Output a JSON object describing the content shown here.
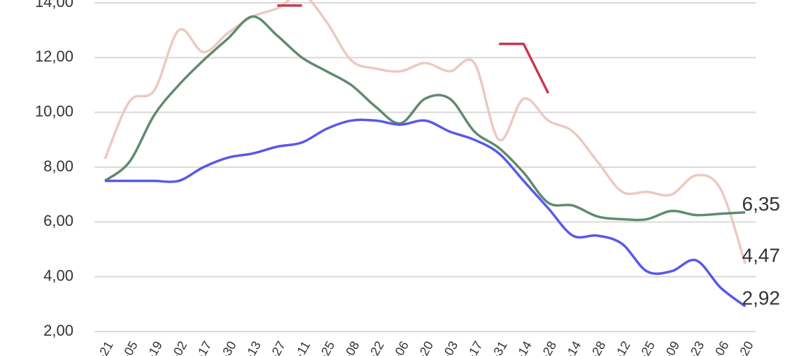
{
  "chart_data": {
    "type": "line",
    "categories": [
      "-21",
      "-05",
      "-19",
      "-02",
      "-17",
      "-30",
      "-13",
      "-27",
      "-11",
      "-25",
      "-08",
      "-22",
      "-06",
      "-20",
      "-03",
      "-17",
      "-31",
      "-14",
      "-28",
      "-14",
      "-28",
      "-12",
      "-25",
      "-09",
      "-23",
      "-06",
      "-20"
    ],
    "series": [
      {
        "color": "#ecc9c1",
        "values": [
          8.3,
          10.4,
          10.8,
          13.0,
          12.2,
          12.9,
          13.5,
          13.8,
          14.3,
          13.3,
          11.9,
          11.6,
          11.5,
          11.8,
          11.5,
          11.8,
          9.0,
          10.5,
          9.7,
          9.3,
          8.2,
          7.1,
          7.1,
          7.0,
          7.7,
          7.2,
          4.47
        ],
        "value_labels": [
          null,
          null,
          null,
          null,
          null,
          null,
          null,
          null,
          null,
          null,
          null,
          null,
          null,
          null,
          null,
          null,
          null,
          null,
          null,
          null,
          null,
          null,
          null,
          null,
          null,
          null,
          "4,47"
        ]
      },
      {
        "color": "#5f8b6f",
        "values": [
          7.5,
          8.2,
          9.9,
          11.0,
          11.9,
          12.7,
          13.5,
          12.8,
          12.0,
          11.5,
          11.0,
          10.2,
          9.6,
          10.5,
          10.5,
          9.3,
          8.7,
          7.8,
          6.7,
          6.6,
          6.2,
          6.1,
          6.1,
          6.4,
          6.25,
          6.3,
          6.35
        ],
        "value_labels": [
          null,
          null,
          null,
          null,
          null,
          null,
          null,
          null,
          null,
          null,
          null,
          null,
          null,
          null,
          null,
          null,
          null,
          null,
          null,
          null,
          null,
          null,
          null,
          null,
          null,
          null,
          "6,35"
        ]
      },
      {
        "color": "#5858ec",
        "values": [
          7.5,
          7.5,
          7.5,
          7.5,
          8.0,
          8.35,
          8.5,
          8.75,
          8.9,
          9.4,
          9.7,
          9.7,
          9.55,
          9.7,
          9.3,
          9.0,
          8.5,
          7.5,
          6.5,
          5.5,
          5.5,
          5.2,
          4.2,
          4.2,
          4.6,
          3.6,
          2.92
        ],
        "value_labels": [
          null,
          null,
          null,
          null,
          null,
          null,
          null,
          null,
          null,
          null,
          null,
          null,
          null,
          null,
          null,
          null,
          null,
          null,
          null,
          null,
          null,
          null,
          null,
          null,
          null,
          null,
          "2,92"
        ]
      },
      {
        "color": "#c8384e",
        "values": [
          null,
          null,
          null,
          null,
          null,
          null,
          null,
          13.9,
          13.9,
          null,
          null,
          null,
          null,
          null,
          null,
          null,
          12.5,
          12.5,
          10.7,
          null,
          null,
          null,
          null,
          null,
          null,
          null,
          null
        ]
      }
    ],
    "ylim": [
      2,
      14
    ],
    "yticks": [
      {
        "value": 2,
        "label": "2,00"
      },
      {
        "value": 4,
        "label": "4,00"
      },
      {
        "value": 6,
        "label": "6,00"
      },
      {
        "value": 8,
        "label": "8,00"
      },
      {
        "value": 10,
        "label": "10,00"
      },
      {
        "value": 12,
        "label": "12,00"
      },
      {
        "value": 14,
        "label": "14,00"
      }
    ],
    "grid": true
  }
}
